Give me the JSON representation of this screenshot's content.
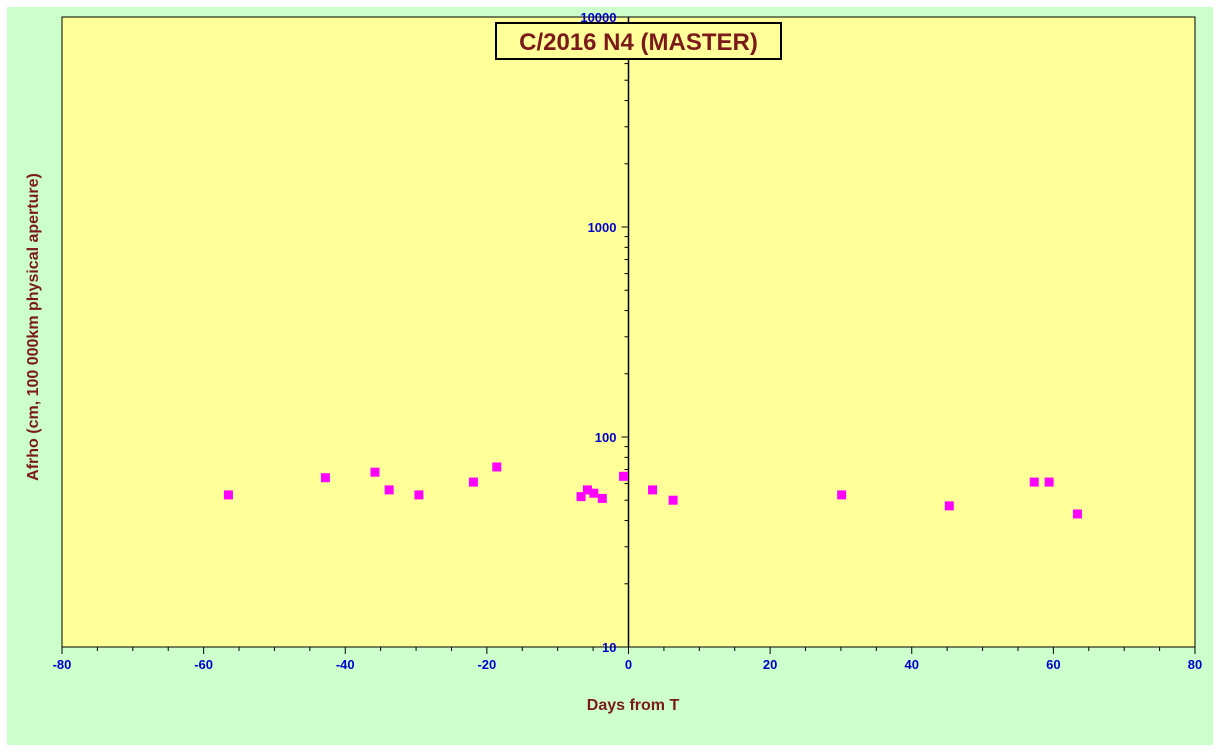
{
  "chart_data": {
    "type": "scatter",
    "title": "C/2016 N4 (MASTER)",
    "xlabel": "Days from T",
    "ylabel": "Afrho (cm, 100 000km physical aperture)",
    "xlim": [
      -80,
      80
    ],
    "ylim": [
      10,
      10000
    ],
    "yscale": "log",
    "x_ticks": [
      -80,
      -60,
      -40,
      -20,
      0,
      20,
      40,
      60,
      80
    ],
    "y_ticks": [
      10,
      100,
      1000,
      10000
    ],
    "x_tick_labels": [
      "-80",
      "-60",
      "-40",
      "-20",
      "0",
      "20",
      "40",
      "60",
      "80"
    ],
    "y_tick_labels": [
      "10",
      "100",
      "1000",
      "10000"
    ],
    "grid": false,
    "colors": {
      "background": "#ccffcc",
      "plot_area": "#ffff99",
      "marker": "#ff00ff",
      "tick_label": "#0000cc",
      "title_text": "#7a1a1a"
    },
    "series": [
      {
        "x": [
          -56.5,
          -42.8,
          -35.8,
          -33.8,
          -29.6,
          -21.9,
          -18.6,
          -6.7,
          -5.8,
          -4.9,
          -3.7,
          -0.7,
          3.4,
          6.3,
          30.1,
          45.3,
          57.3,
          59.4,
          63.4
        ],
        "y": [
          53,
          64,
          68,
          56,
          53,
          61,
          72,
          52,
          56,
          54,
          51,
          65,
          56,
          50,
          53,
          47,
          61,
          61,
          43
        ]
      }
    ]
  }
}
